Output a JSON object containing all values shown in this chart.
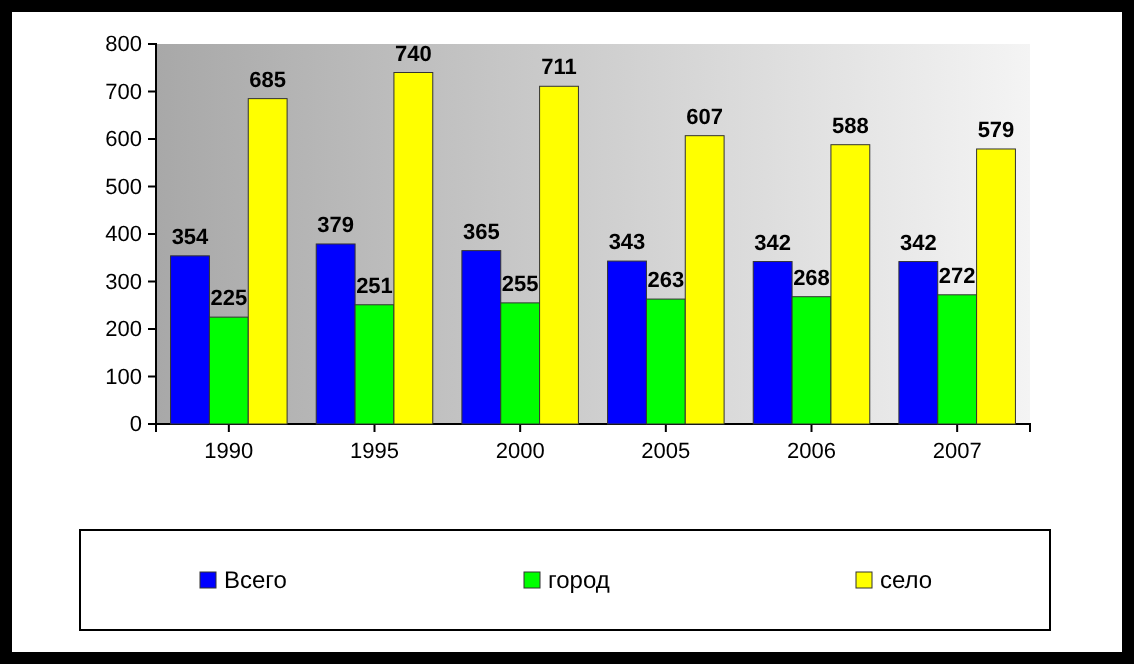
{
  "chart_data": {
    "type": "bar",
    "categories": [
      "1990",
      "1995",
      "2000",
      "2005",
      "2006",
      "2007"
    ],
    "series": [
      {
        "name": "Всего",
        "color": "#0000ff",
        "values": [
          354,
          379,
          365,
          343,
          342,
          342
        ]
      },
      {
        "name": "город",
        "color": "#00ff00",
        "values": [
          225,
          251,
          255,
          263,
          268,
          272
        ]
      },
      {
        "name": "село",
        "color": "#ffff00",
        "values": [
          685,
          740,
          711,
          607,
          588,
          579
        ]
      }
    ],
    "ylim": [
      0,
      800
    ],
    "yticks": [
      0,
      100,
      200,
      300,
      400,
      500,
      600,
      700,
      800
    ],
    "data_labels": true,
    "legend": "bottom",
    "grid": false
  }
}
